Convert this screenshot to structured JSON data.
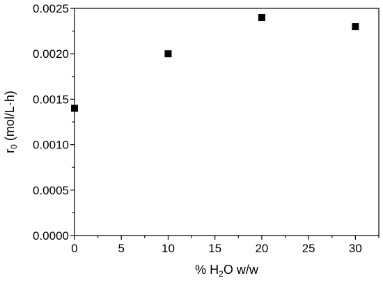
{
  "chart_data": {
    "type": "scatter",
    "title": "",
    "xlabel": {
      "prefix": "% H",
      "subscript": "2",
      "suffix": "O w/w"
    },
    "ylabel": {
      "prefix": "r",
      "subscript": "0",
      "suffix": " (mol/L·h)"
    },
    "xlim": [
      0,
      32.5
    ],
    "ylim": [
      0,
      0.0025
    ],
    "x_ticks": [
      0,
      5,
      10,
      15,
      20,
      25,
      30
    ],
    "x_tick_labels": [
      "0",
      "5",
      "10",
      "15",
      "20",
      "25",
      "30"
    ],
    "y_ticks": [
      0,
      0.0005,
      0.001,
      0.0015,
      0.002,
      0.0025
    ],
    "y_tick_labels": [
      "0.0000",
      "0.0005",
      "0.0010",
      "0.0015",
      "0.0020",
      "0.0025"
    ],
    "grid": false,
    "legend": "none",
    "marker": "filled-square",
    "colors": {
      "marker": "#000000",
      "axis": "#000000"
    },
    "series": [
      {
        "x": [
          0,
          10,
          20,
          30
        ],
        "y": [
          0.0014,
          0.002,
          0.0024,
          0.0023
        ]
      }
    ]
  }
}
